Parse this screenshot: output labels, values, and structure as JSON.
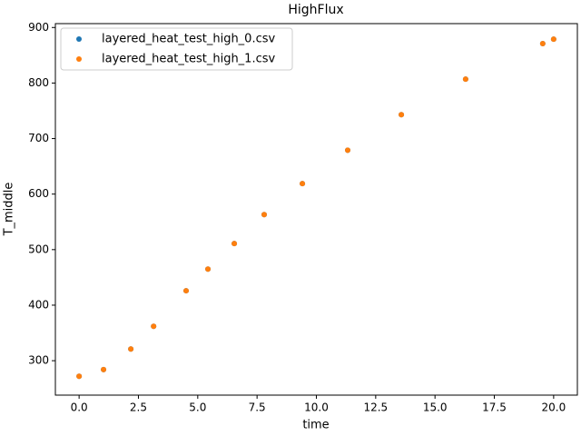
{
  "chart_data": {
    "type": "scatter",
    "title": "HighFlux",
    "x_label": "time",
    "y_label": "T_middle",
    "x": [
      0,
      1.03,
      2.18,
      3.14,
      4.51,
      5.43,
      6.54,
      7.8,
      9.41,
      11.32,
      13.58,
      16.29,
      19.54,
      20.0
    ],
    "series": [
      {
        "name": "layered_heat_test_high_0.csv",
        "color": "#1f77b4",
        "values": [
          272,
          284,
          321,
          362,
          426,
          465,
          511,
          563,
          619,
          679,
          743,
          807,
          871,
          879
        ]
      },
      {
        "name": "layered_heat_test_high_1.csv",
        "color": "#ff7f0e",
        "values": [
          272,
          284,
          321,
          362,
          426,
          465,
          511,
          563,
          619,
          679,
          743,
          807,
          871,
          879
        ]
      }
    ],
    "xlim": [
      -1,
      21
    ],
    "xticks": [
      {
        "value": 0,
        "label": "0.0"
      },
      2.5,
      {
        "value": 5,
        "label": "5.0"
      },
      7.5,
      {
        "value": 10,
        "label": "10.0"
      },
      12.5,
      {
        "value": 15,
        "label": "15.0"
      },
      17.5,
      {
        "value": 20,
        "label": "20.0"
      }
    ],
    "ylim": [
      238,
      907
    ],
    "yticks": [
      300,
      400,
      500,
      600,
      700,
      800,
      900
    ],
    "legend": "upper left",
    "grid": false
  }
}
